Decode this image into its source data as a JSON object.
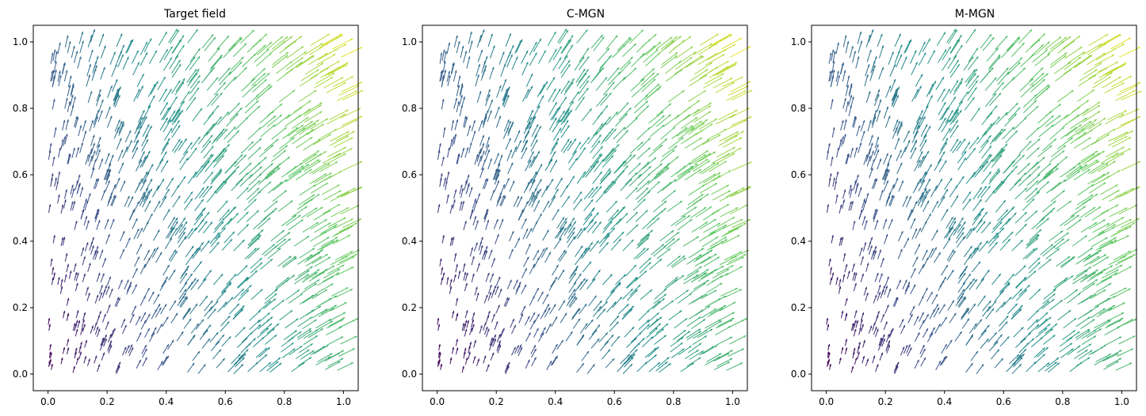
{
  "chart_data": [
    {
      "type": "quiver",
      "title": "Target field",
      "xlabel": "",
      "ylabel": "",
      "xlim": [
        -0.05,
        1.05
      ],
      "ylim": [
        -0.05,
        1.05
      ],
      "xticks": [
        "0.0",
        "0.2",
        "0.4",
        "0.6",
        "0.8",
        "1.0"
      ],
      "yticks": [
        "0.0",
        "0.2",
        "0.4",
        "0.6",
        "0.8",
        "1.0"
      ],
      "field": "sampled vectors over [0,1]x[0,1]; angle grows from vertical (upper-left) to ~25deg from horizontal (right); magnitude grows with x and y",
      "colormap": [
        "#440154",
        "#3b528b",
        "#21918c",
        "#5ec962",
        "#fde725"
      ],
      "seed": 11
    },
    {
      "type": "quiver",
      "title": "C-MGN",
      "xlabel": "",
      "ylabel": "",
      "xlim": [
        -0.05,
        1.05
      ],
      "ylim": [
        -0.05,
        1.05
      ],
      "xticks": [
        "0.0",
        "0.2",
        "0.4",
        "0.6",
        "0.8",
        "1.0"
      ],
      "yticks": [
        "0.0",
        "0.2",
        "0.4",
        "0.6",
        "0.8",
        "1.0"
      ],
      "field": "prediction closely matching the target field",
      "colormap": [
        "#440154",
        "#3b528b",
        "#21918c",
        "#5ec962",
        "#fde725"
      ],
      "seed": 11
    },
    {
      "type": "quiver",
      "title": "M-MGN",
      "xlabel": "",
      "ylabel": "",
      "xlim": [
        -0.05,
        1.05
      ],
      "ylim": [
        -0.05,
        1.05
      ],
      "xticks": [
        "0.0",
        "0.2",
        "0.4",
        "0.6",
        "0.8",
        "1.0"
      ],
      "yticks": [
        "0.0",
        "0.2",
        "0.4",
        "0.6",
        "0.8",
        "1.0"
      ],
      "field": "prediction closely matching the target field",
      "colormap": [
        "#440154",
        "#3b528b",
        "#21918c",
        "#5ec962",
        "#fde725"
      ],
      "seed": 11
    }
  ]
}
